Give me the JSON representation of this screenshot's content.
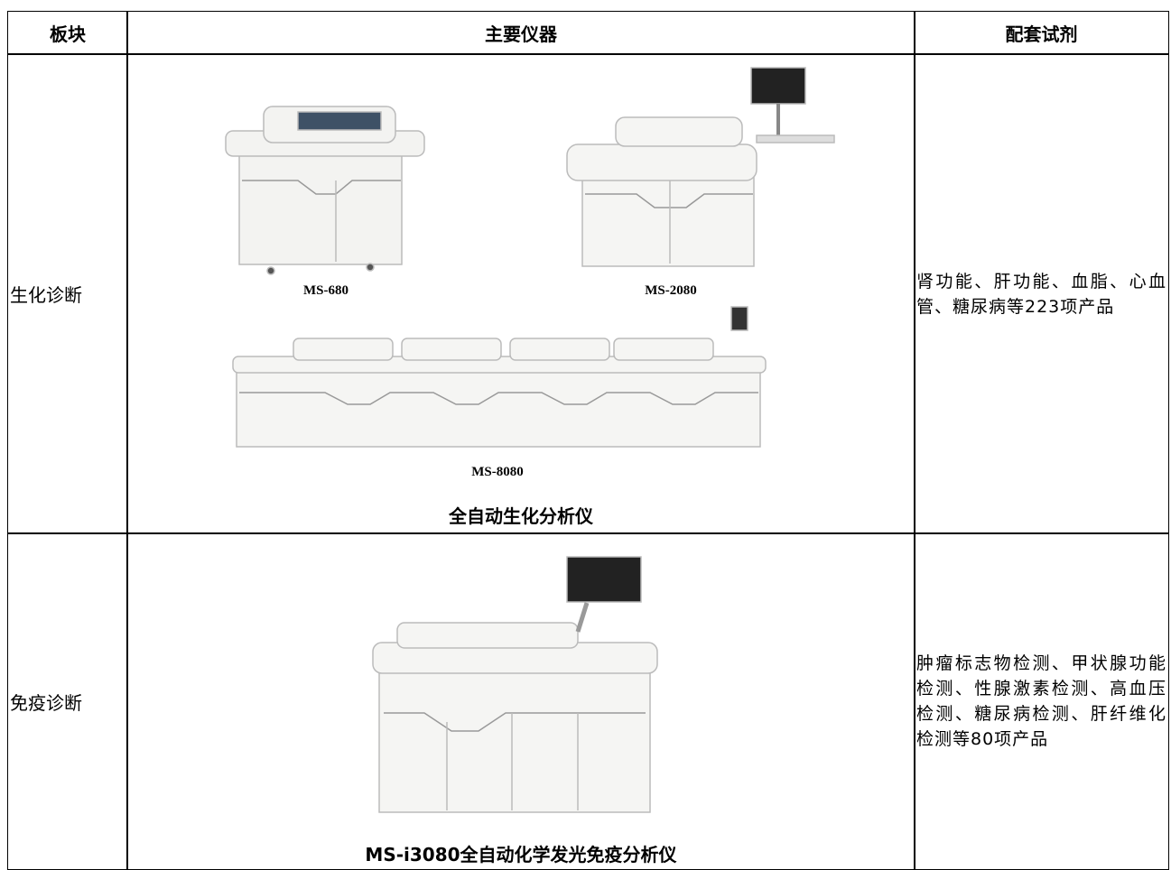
{
  "table": {
    "header": [
      "板块",
      "主要仪器",
      "配套试剂"
    ],
    "rows": [
      {
        "segment": "生化诊断",
        "instruments": [
          "MS-680",
          "MS-2080",
          "MS-8080"
        ],
        "caption": "全自动生化分析仪",
        "reagents": "肾功能、肝功能、血脂、心血管、糖尿病等223项产品"
      },
      {
        "segment": "免疫诊断",
        "caption": "MS-i3080全自动化学发光免疫分析仪",
        "reagents": "肿瘤标志物检测、甲状腺功能检测、性腺激素检测、高血压检测、糖尿病检测、肝纤维化检测等80项产品"
      }
    ]
  }
}
